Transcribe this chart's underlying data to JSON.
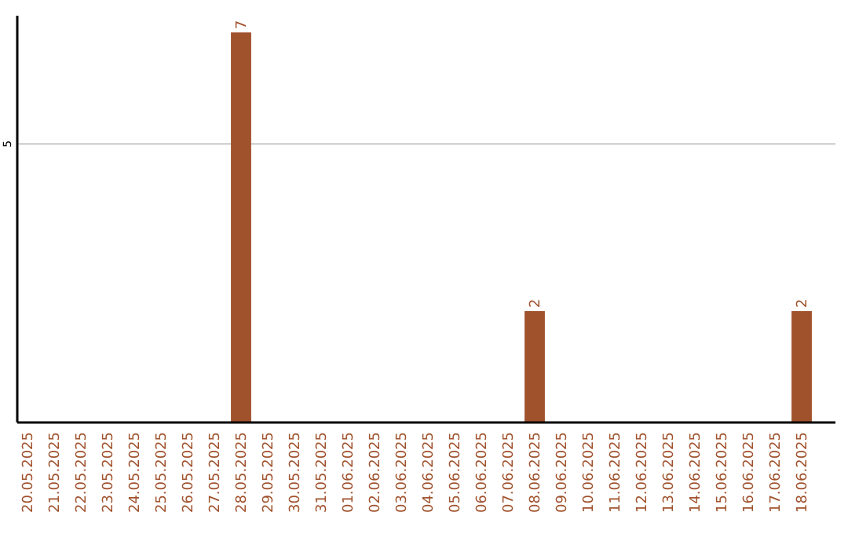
{
  "chart_data": {
    "type": "bar",
    "categories": [
      "20.05.2025",
      "21.05.2025",
      "22.05.2025",
      "23.05.2025",
      "24.05.2025",
      "25.05.2025",
      "26.05.2025",
      "27.05.2025",
      "28.05.2025",
      "29.05.2025",
      "30.05.2025",
      "31.05.2025",
      "01.06.2025",
      "02.06.2025",
      "03.06.2025",
      "04.06.2025",
      "05.06.2025",
      "06.06.2025",
      "07.06.2025",
      "08.06.2025",
      "09.06.2025",
      "10.06.2025",
      "11.06.2025",
      "12.06.2025",
      "13.06.2025",
      "14.06.2025",
      "15.06.2025",
      "16.06.2025",
      "17.06.2025",
      "18.06.2025"
    ],
    "values": [
      0,
      0,
      0,
      0,
      0,
      0,
      0,
      0,
      7,
      0,
      0,
      0,
      0,
      0,
      0,
      0,
      0,
      0,
      0,
      2,
      0,
      0,
      0,
      0,
      0,
      0,
      0,
      0,
      0,
      2
    ],
    "value_labels": [
      null,
      null,
      null,
      null,
      null,
      null,
      null,
      null,
      "7",
      null,
      null,
      null,
      null,
      null,
      null,
      null,
      null,
      null,
      null,
      "2",
      null,
      null,
      null,
      null,
      null,
      null,
      null,
      null,
      null,
      "2"
    ],
    "color": "#a0522d",
    "ylim": [
      0,
      7.3
    ],
    "yticks": [
      5
    ],
    "grid": "y"
  }
}
